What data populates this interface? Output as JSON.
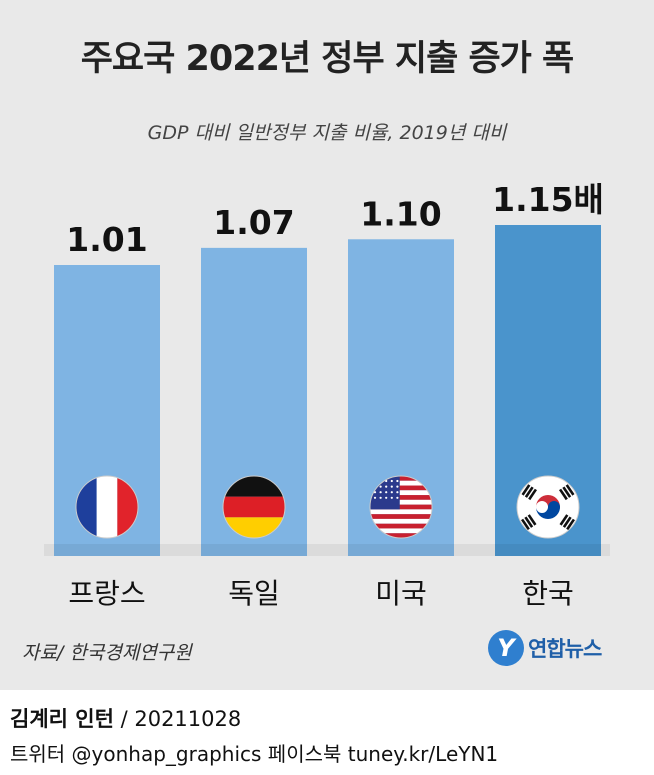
{
  "title": "주요국 2022년 정부 지출 증가 폭",
  "subtitle": "GDP 대비 일반정부 지출 비율, 2019년 대비",
  "chart_data": {
    "type": "bar",
    "categories": [
      "프랑스",
      "독일",
      "미국",
      "한국"
    ],
    "values": [
      1.01,
      1.07,
      1.1,
      1.15
    ],
    "value_labels": [
      "1.01",
      "1.07",
      "1.10",
      "1.15배"
    ],
    "flags": [
      "france-flag",
      "germany-flag",
      "usa-flag",
      "korea-flag"
    ],
    "colors": {
      "default": "#7fb4e3",
      "highlight": "#4a94cc"
    },
    "highlight_index": 3,
    "grid": false
  },
  "source": "자료/ 한국경제연구원",
  "logo": {
    "text": "연합뉴스",
    "mark": "Y"
  },
  "credit": {
    "author": "김계리 인턴",
    "date": " / 20211028",
    "line2": "트위터 @yonhap_graphics  페이스북 tuney.kr/LeYN1"
  }
}
